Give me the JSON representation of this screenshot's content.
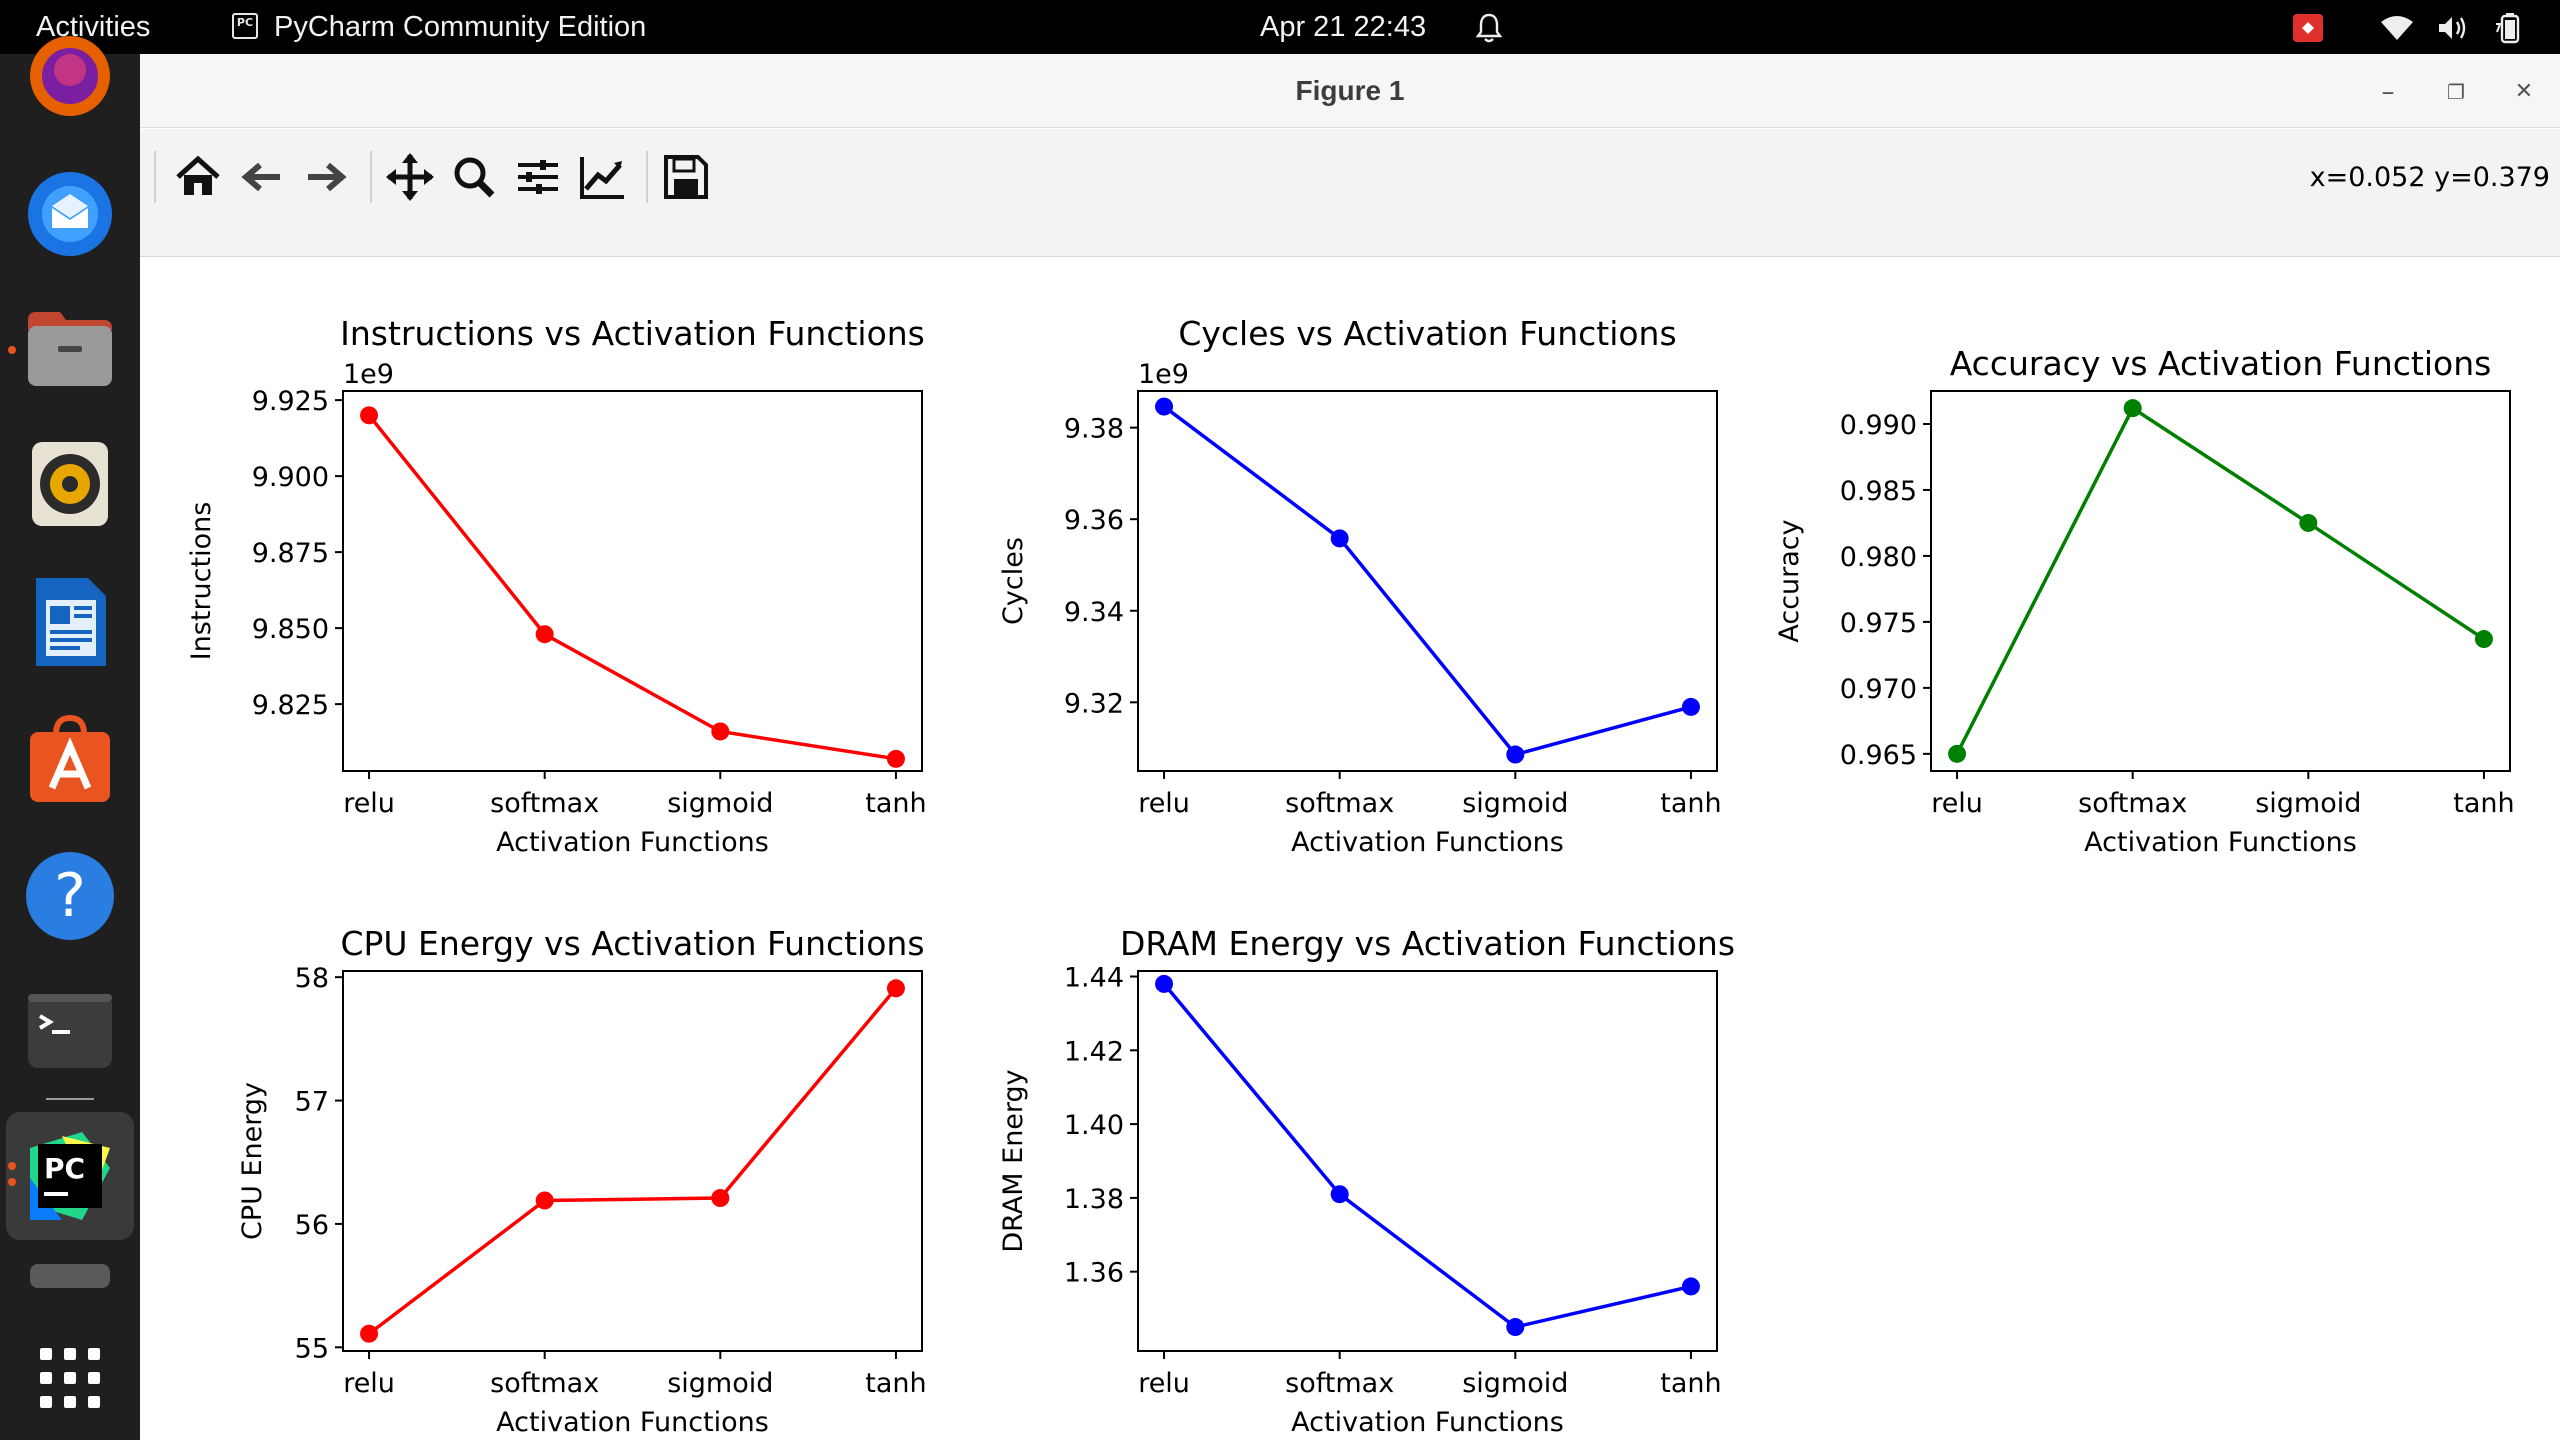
{
  "topbar": {
    "activities": "Activities",
    "app_menu": "PyCharm Community Edition",
    "app_menu_icon_text": "PC",
    "datetime": "Apr 21  22:43"
  },
  "dock": {
    "items": [
      {
        "name": "firefox",
        "icon": "firefox-icon",
        "running": false
      },
      {
        "name": "thunderbird",
        "icon": "thunderbird-icon",
        "running": false
      },
      {
        "name": "files",
        "icon": "folder-icon",
        "running": true
      },
      {
        "name": "rhythmbox",
        "icon": "speaker-icon",
        "running": false
      },
      {
        "name": "libreoffice-writer",
        "icon": "document-icon",
        "running": false
      },
      {
        "name": "app-center",
        "icon": "shopping-bag-icon",
        "running": false
      },
      {
        "name": "help",
        "icon": "help-icon",
        "running": false
      },
      {
        "name": "terminal",
        "icon": "terminal-icon",
        "running": false
      },
      {
        "name": "pycharm",
        "icon": "pycharm-icon",
        "running": true,
        "active": true
      },
      {
        "name": "show-apps",
        "icon": "app-grid-icon",
        "running": false
      }
    ]
  },
  "window": {
    "title": "Figure 1",
    "minimize": "–",
    "maximize": "❐",
    "close": "✕"
  },
  "toolbar": {
    "buttons": [
      "home-icon",
      "back-arrow-icon",
      "forward-arrow-icon",
      "pan-icon",
      "zoom-icon",
      "subplots-config-icon",
      "edit-axis-icon",
      "save-icon"
    ],
    "coords": "x=0.052 y=0.379"
  },
  "chart_data": [
    {
      "type": "line",
      "title": "Instructions vs Activation Functions",
      "xlabel": "Activation Functions",
      "ylabel": "Instructions",
      "categories": [
        "relu",
        "softmax",
        "sigmoid",
        "tanh"
      ],
      "values": [
        9920000000,
        9848000000,
        9816000000,
        9807000000
      ],
      "offset_text": "1e9",
      "yticks": [
        "9.825",
        "9.850",
        "9.875",
        "9.900",
        "9.925"
      ],
      "ytick_values": [
        9825000000,
        9850000000,
        9875000000,
        9900000000,
        9925000000
      ],
      "ylim": [
        9803000000,
        9928000000
      ],
      "color": "#ff0000"
    },
    {
      "type": "line",
      "title": "Cycles vs Activation Functions",
      "xlabel": "Activation Functions",
      "ylabel": "Cycles",
      "categories": [
        "relu",
        "softmax",
        "sigmoid",
        "tanh"
      ],
      "values": [
        9384600000,
        9355800000,
        9308600000,
        9319000000
      ],
      "offset_text": "1e9",
      "yticks": [
        "9.32",
        "9.34",
        "9.36",
        "9.38"
      ],
      "ytick_values": [
        9320000000,
        9340000000,
        9360000000,
        9380000000
      ],
      "ylim": [
        9305000000,
        9388000000
      ],
      "color": "#0000ff"
    },
    {
      "type": "line",
      "title": "Accuracy vs Activation Functions",
      "xlabel": "Activation Functions",
      "ylabel": "Accuracy",
      "categories": [
        "relu",
        "softmax",
        "sigmoid",
        "tanh"
      ],
      "values": [
        0.965,
        0.9912,
        0.9825,
        0.9737
      ],
      "offset_text": "",
      "yticks": [
        "0.965",
        "0.970",
        "0.975",
        "0.980",
        "0.985",
        "0.990"
      ],
      "ytick_values": [
        0.965,
        0.97,
        0.975,
        0.98,
        0.985,
        0.99
      ],
      "ylim": [
        0.9637,
        0.9925
      ],
      "color": "#008000"
    },
    {
      "type": "line",
      "title": "CPU Energy vs Activation Functions",
      "xlabel": "Activation Functions",
      "ylabel": "CPU Energy",
      "categories": [
        "relu",
        "softmax",
        "sigmoid",
        "tanh"
      ],
      "values": [
        55.11,
        56.19,
        56.21,
        57.91
      ],
      "offset_text": "",
      "yticks": [
        "55",
        "56",
        "57",
        "58"
      ],
      "ytick_values": [
        55,
        56,
        57,
        58
      ],
      "ylim": [
        54.97,
        58.05
      ],
      "color": "#ff0000"
    },
    {
      "type": "line",
      "title": "DRAM Energy vs Activation Functions",
      "xlabel": "Activation Functions",
      "ylabel": "DRAM Energy",
      "categories": [
        "relu",
        "softmax",
        "sigmoid",
        "tanh"
      ],
      "values": [
        1.438,
        1.381,
        1.345,
        1.356
      ],
      "offset_text": "",
      "yticks": [
        "1.36",
        "1.38",
        "1.40",
        "1.42",
        "1.44"
      ],
      "ytick_values": [
        1.36,
        1.38,
        1.4,
        1.42,
        1.44
      ],
      "ylim": [
        1.3385,
        1.4415
      ],
      "color": "#0000ff"
    }
  ]
}
